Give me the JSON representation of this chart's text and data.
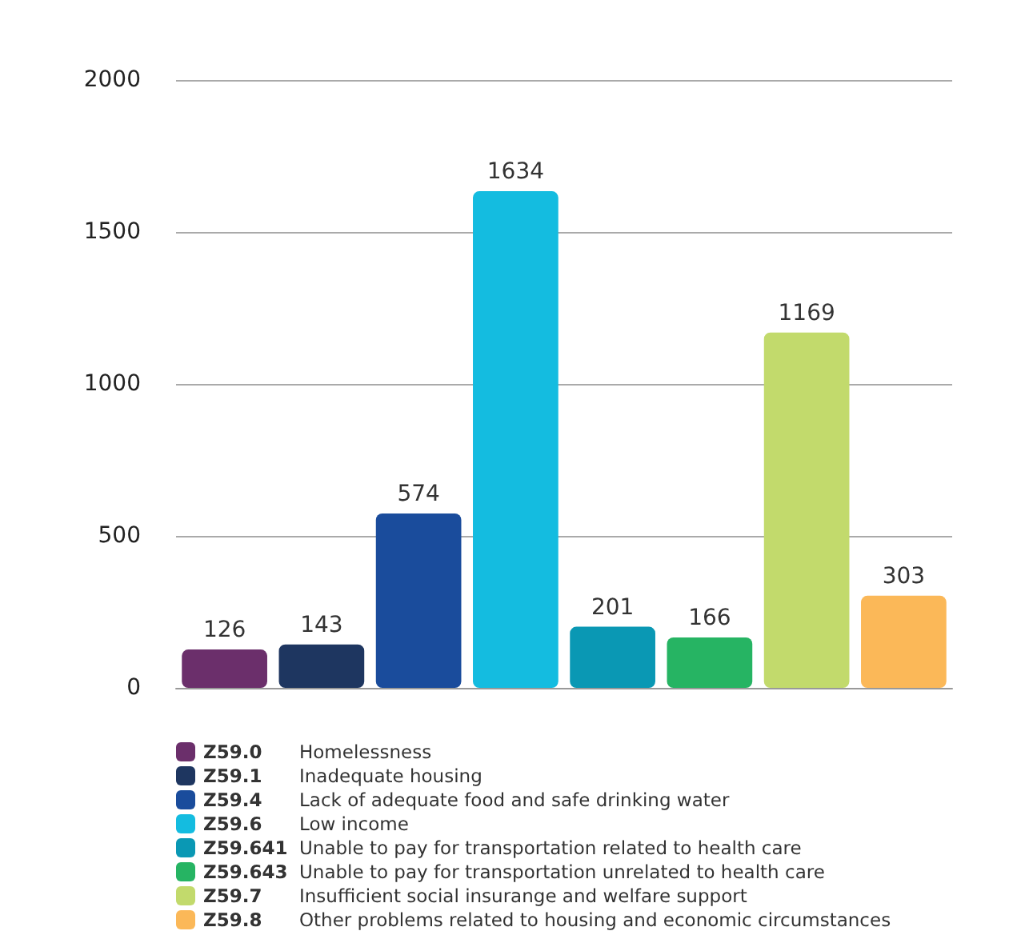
{
  "chart_data": {
    "type": "bar",
    "categories": [
      null,
      null,
      null,
      null,
      null,
      null,
      null,
      null
    ],
    "series": [
      {
        "name": "Z59.0 Homelessness",
        "color": "#6b2f6b",
        "values": [
          126,
          null,
          null,
          null,
          null,
          null,
          null,
          null
        ]
      },
      {
        "name": "Z59.1 Inadequate housing",
        "color": "#1e3660",
        "values": [
          null,
          143,
          null,
          null,
          null,
          null,
          null,
          null
        ]
      },
      {
        "name": "Z59.4 Lack of adequate food and safe drinking water",
        "color": "#1a4c9c",
        "values": [
          null,
          null,
          574,
          null,
          null,
          null,
          null,
          null
        ]
      },
      {
        "name": "Z59.6 Low income",
        "color": "#14bce0",
        "values": [
          null,
          null,
          null,
          1634,
          null,
          null,
          null,
          null
        ]
      },
      {
        "name": "Z59.641 Unable to pay for transportation related to health care",
        "color": "#0a98b4",
        "values": [
          null,
          null,
          null,
          null,
          201,
          null,
          null,
          null
        ]
      },
      {
        "name": "Z59.643 Unable to pay for transportation unrelated to health care",
        "color": "#26b463",
        "values": [
          null,
          null,
          null,
          null,
          null,
          166,
          null,
          null
        ]
      },
      {
        "name": "Z59.7 Insufficient social insurange and welfare support",
        "color": "#c2da6c",
        "values": [
          null,
          null,
          null,
          null,
          null,
          null,
          1169,
          null
        ]
      },
      {
        "name": "Z59.8 Other problems related to housing and economic circumstances",
        "color": "#fbb858",
        "values": [
          null,
          null,
          null,
          null,
          null,
          null,
          null,
          303
        ]
      }
    ],
    "ylim": [
      0,
      2000
    ],
    "yticks": [
      0,
      500,
      1000,
      1500,
      2000
    ],
    "grid": "y",
    "legend": "bottom",
    "data_labels": true
  }
}
